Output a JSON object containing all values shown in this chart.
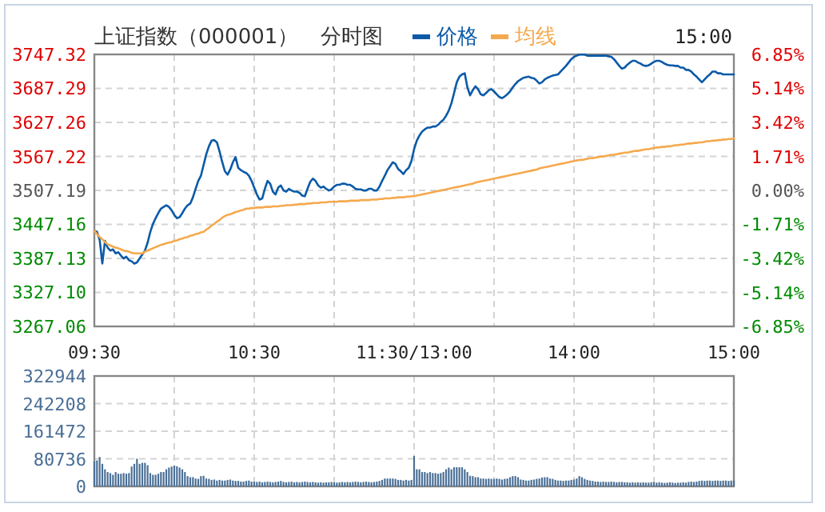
{
  "chart_data": [
    {
      "type": "line",
      "title": "上证指数（000001）",
      "subtitle": "分时图",
      "annotations": [
        "15:00"
      ],
      "legend": "top",
      "grid": true,
      "categories": [
        "09:30",
        null,
        null,
        null,
        null,
        null,
        null,
        null,
        null,
        null,
        null,
        null,
        null,
        null,
        null,
        null,
        null,
        null,
        null,
        null,
        null,
        null,
        null,
        null,
        null,
        null,
        null,
        null,
        null,
        null,
        null,
        null,
        null,
        null,
        null,
        null,
        null,
        null,
        null,
        null,
        null,
        null,
        null,
        null,
        null,
        null,
        null,
        null,
        null,
        null,
        null,
        null,
        null,
        null,
        null,
        null,
        null,
        null,
        null,
        null,
        "10:30",
        null,
        null,
        null,
        null,
        null,
        null,
        null,
        null,
        null,
        null,
        null,
        null,
        null,
        null,
        null,
        null,
        null,
        null,
        null,
        null,
        null,
        null,
        null,
        null,
        null,
        null,
        null,
        null,
        null,
        null,
        null,
        null,
        null,
        null,
        null,
        null,
        null,
        null,
        null,
        null,
        null,
        null,
        null,
        null,
        null,
        null,
        null,
        null,
        null,
        null,
        null,
        null,
        null,
        null,
        null,
        null,
        null,
        null,
        null,
        "11:30/13:00",
        null,
        null,
        null,
        null,
        null,
        null,
        null,
        null,
        null,
        null,
        null,
        null,
        null,
        null,
        null,
        null,
        null,
        null,
        null,
        null,
        null,
        null,
        null,
        null,
        null,
        null,
        null,
        null,
        null,
        null,
        null,
        null,
        null,
        null,
        null,
        null,
        null,
        null,
        null,
        null,
        null,
        null,
        null,
        null,
        null,
        null,
        null,
        null,
        null,
        null,
        null,
        null,
        null,
        null,
        null,
        null,
        null,
        null,
        null,
        "14:00",
        null,
        null,
        null,
        null,
        null,
        null,
        null,
        null,
        null,
        null,
        null,
        null,
        null,
        null,
        null,
        null,
        null,
        null,
        null,
        null,
        null,
        null,
        null,
        null,
        null,
        null,
        null,
        null,
        null,
        null,
        null,
        null,
        null,
        null,
        null,
        null,
        null,
        null,
        null,
        null,
        null,
        null,
        null,
        null,
        null,
        null,
        null,
        null,
        null,
        null,
        null,
        null,
        null,
        null,
        null,
        null,
        null,
        null,
        null,
        "15:00"
      ],
      "ylim": [
        3267.06,
        3747.32
      ],
      "yticks": [
        3267.06,
        {
          "value": 3327.1,
          "label": "3327.10"
        },
        3387.13,
        3447.16,
        3507.19,
        3567.22,
        3627.26,
        3687.29,
        3747.32
      ],
      "y2lim": [
        -6.85,
        6.85
      ],
      "y2ticks": [
        {
          "value": -6.85,
          "label": "-6.85%"
        },
        {
          "value": -5.14,
          "label": "-5.14%"
        },
        {
          "value": -3.42,
          "label": "-3.42%"
        },
        {
          "value": -1.71,
          "label": "-1.71%"
        },
        {
          "value": 0,
          "label": "0.00%"
        },
        {
          "value": 1.71,
          "label": "1.71%"
        },
        {
          "value": 3.42,
          "label": "3.42%"
        },
        {
          "value": 5.14,
          "label": "5.14%"
        },
        {
          "value": 6.85,
          "label": "6.85%"
        }
      ],
      "series": [
        {
          "name": "价格",
          "color": "#0b5aa8",
          "values": [
            3436,
            3434,
            3420,
            3378,
            3418,
            3406,
            3401,
            3403,
            3396,
            3398,
            3392,
            3387,
            3390,
            3384,
            3382,
            3378,
            3380,
            3387,
            3394,
            3401,
            3415,
            3434,
            3448,
            3458,
            3467,
            3475,
            3478,
            3481,
            3478,
            3472,
            3464,
            3458,
            3460,
            3467,
            3475,
            3481,
            3484,
            3495,
            3510,
            3524,
            3533,
            3552,
            3571,
            3585,
            3595,
            3596,
            3592,
            3576,
            3557,
            3541,
            3535,
            3544,
            3557,
            3566,
            3547,
            3543,
            3540,
            3538,
            3533,
            3524,
            3512,
            3500,
            3491,
            3493,
            3510,
            3524,
            3519,
            3505,
            3500,
            3512,
            3516,
            3507,
            3505,
            3510,
            3507,
            3505,
            3505,
            3503,
            3498,
            3497,
            3510,
            3522,
            3528,
            3524,
            3516,
            3512,
            3514,
            3510,
            3507,
            3509,
            3514,
            3517,
            3517,
            3519,
            3519,
            3517,
            3517,
            3514,
            3510,
            3509,
            3509,
            3507,
            3507,
            3510,
            3510,
            3507,
            3507,
            3514,
            3524,
            3533,
            3543,
            3550,
            3557,
            3554,
            3545,
            3541,
            3536,
            3543,
            3547,
            3559,
            3580,
            3595,
            3604,
            3611,
            3615,
            3618,
            3618,
            3620,
            3620,
            3623,
            3628,
            3632,
            3639,
            3648,
            3661,
            3679,
            3698,
            3708,
            3712,
            3714,
            3689,
            3675,
            3684,
            3691,
            3686,
            3677,
            3675,
            3679,
            3684,
            3686,
            3682,
            3677,
            3672,
            3670,
            3673,
            3677,
            3682,
            3689,
            3695,
            3700,
            3703,
            3706,
            3707,
            3708,
            3706,
            3705,
            3701,
            3696,
            3698,
            3703,
            3706,
            3708,
            3710,
            3711,
            3712,
            3717,
            3722,
            3727,
            3733,
            3739,
            3743,
            3745,
            3747,
            3747,
            3747,
            3745,
            3745,
            3745,
            3745,
            3745,
            3745,
            3745,
            3745,
            3744,
            3743,
            3739,
            3733,
            3727,
            3722,
            3724,
            3729,
            3733,
            3736,
            3736,
            3733,
            3731,
            3728,
            3727,
            3728,
            3731,
            3734,
            3736,
            3736,
            3734,
            3731,
            3729,
            3728,
            3728,
            3727,
            3727,
            3724,
            3724,
            3720,
            3720,
            3717,
            3712,
            3708,
            3703,
            3698,
            3703,
            3708,
            3712,
            3717,
            3717,
            3714,
            3714,
            3712,
            3712,
            3712,
            3712,
            3712
          ]
        },
        {
          "name": "均线",
          "color": "#f5a94e",
          "values": [
            3436,
            3430,
            3425,
            3421,
            3416,
            3412,
            3410,
            3408,
            3406,
            3405,
            3403,
            3401,
            3400,
            3399,
            3397,
            3396,
            3396,
            3396,
            3396,
            3399,
            3401,
            3403,
            3405,
            3407,
            3409,
            3411,
            3412,
            3414,
            3415,
            3416,
            3418,
            3419,
            3421,
            3422,
            3424,
            3425,
            3427,
            3428,
            3430,
            3431,
            3433,
            3434,
            3438,
            3441,
            3445,
            3448,
            3452,
            3455,
            3459,
            3462,
            3464,
            3465,
            3467,
            3469,
            3470,
            3472,
            3473,
            3475,
            3475,
            3476,
            3476,
            3477,
            3477,
            3477,
            3478,
            3478,
            3478,
            3479,
            3479,
            3479,
            3480,
            3480,
            3481,
            3481,
            3481,
            3482,
            3482,
            3483,
            3483,
            3483,
            3484,
            3484,
            3485,
            3485,
            3485,
            3486,
            3486,
            3486,
            3487,
            3487,
            3487,
            3487,
            3488,
            3488,
            3488,
            3488,
            3489,
            3489,
            3489,
            3489,
            3490,
            3490,
            3490,
            3490,
            3491,
            3491,
            3491,
            3492,
            3492,
            3493,
            3493,
            3493,
            3494,
            3494,
            3495,
            3495,
            3495,
            3496,
            3496,
            3497,
            3497,
            3498,
            3499,
            3500,
            3501,
            3502,
            3503,
            3504,
            3505,
            3506,
            3507,
            3508,
            3509,
            3510,
            3511,
            3512,
            3513,
            3514,
            3515,
            3516,
            3517,
            3518,
            3519,
            3521,
            3522,
            3523,
            3524,
            3525,
            3526,
            3527,
            3528,
            3529,
            3530,
            3531,
            3532,
            3533,
            3534,
            3535,
            3536,
            3537,
            3538,
            3539,
            3540,
            3541,
            3542,
            3543,
            3544,
            3546,
            3547,
            3548,
            3549,
            3550,
            3551,
            3552,
            3553,
            3554,
            3555,
            3556,
            3557,
            3558,
            3559,
            3560,
            3561,
            3561,
            3562,
            3563,
            3564,
            3564,
            3565,
            3566,
            3567,
            3567,
            3568,
            3569,
            3570,
            3570,
            3571,
            3572,
            3573,
            3574,
            3574,
            3575,
            3576,
            3577,
            3577,
            3578,
            3579,
            3580,
            3580,
            3581,
            3582,
            3583,
            3583,
            3584,
            3584,
            3585,
            3585,
            3586,
            3587,
            3587,
            3588,
            3588,
            3589,
            3590,
            3590,
            3591,
            3591,
            3592,
            3592,
            3593,
            3594,
            3594,
            3595,
            3595,
            3596,
            3596,
            3597,
            3597,
            3598,
            3598,
            3599
          ]
        }
      ]
    },
    {
      "type": "bar",
      "grid": true,
      "tick_labels": "y",
      "categories": [
        null,
        null,
        null,
        null,
        null,
        null,
        null,
        null,
        null,
        null,
        null,
        null,
        null,
        null,
        null,
        null,
        null,
        null,
        null,
        null,
        null,
        null,
        null,
        null,
        null,
        null,
        null,
        null,
        null,
        null,
        null,
        null,
        null,
        null,
        null,
        null,
        null,
        null,
        null,
        null,
        null,
        null,
        null,
        null,
        null,
        null,
        null,
        null,
        null,
        null,
        null,
        null,
        null,
        null,
        null,
        null,
        null,
        null,
        null,
        null,
        null,
        null,
        null,
        null,
        null,
        null,
        null,
        null,
        null,
        null,
        null,
        null,
        null,
        null,
        null,
        null,
        null,
        null,
        null,
        null,
        null,
        null,
        null,
        null,
        null,
        null,
        null,
        null,
        null,
        null,
        null,
        null,
        null,
        null,
        null,
        null,
        null,
        null,
        null,
        null,
        null,
        null,
        null,
        null,
        null,
        null,
        null,
        null,
        null,
        null,
        null,
        null,
        null,
        null,
        null,
        null,
        null,
        null,
        null,
        null,
        null,
        null,
        null,
        null,
        null,
        null,
        null,
        null,
        null,
        null,
        null,
        null,
        null,
        null,
        null,
        null,
        null,
        null,
        null,
        null,
        null,
        null,
        null,
        null,
        null,
        null,
        null,
        null,
        null,
        null,
        null,
        null,
        null,
        null,
        null,
        null,
        null,
        null,
        null,
        null,
        null,
        null,
        null,
        null,
        null,
        null,
        null,
        null,
        null,
        null,
        null,
        null,
        null,
        null,
        null,
        null,
        null,
        null,
        null,
        null,
        null,
        null,
        null,
        null,
        null,
        null,
        null,
        null,
        null,
        null,
        null,
        null,
        null,
        null,
        null,
        null,
        null,
        null,
        null,
        null,
        null,
        null,
        null,
        null,
        null,
        null,
        null,
        null,
        null,
        null,
        null,
        null,
        null,
        null,
        null,
        null,
        null,
        null,
        null,
        null,
        null,
        null,
        null,
        null,
        null,
        null,
        null,
        null,
        null,
        null,
        null,
        null,
        null,
        null,
        null,
        null,
        null,
        null,
        null,
        null,
        null
      ],
      "ylim": [
        0,
        322944
      ],
      "yticks": [
        0,
        80736,
        161472,
        242208,
        322944
      ],
      "series": [
        {
          "color": "#4a6f96",
          "values": [
            73000,
            76000,
            86000,
            66000,
            50000,
            42000,
            39000,
            34000,
            42000,
            37000,
            37000,
            39000,
            37000,
            39000,
            58000,
            66000,
            81000,
            66000,
            69000,
            69000,
            62000,
            39000,
            34000,
            34000,
            37000,
            42000,
            42000,
            50000,
            55000,
            58000,
            61000,
            59000,
            55000,
            50000,
            42000,
            30000,
            27000,
            27000,
            23000,
            22000,
            30000,
            31000,
            23000,
            22000,
            19000,
            20000,
            17000,
            19000,
            17000,
            17000,
            19000,
            20000,
            17000,
            16000,
            16000,
            14000,
            14000,
            16000,
            17000,
            14000,
            14000,
            13000,
            14000,
            12000,
            13000,
            14000,
            13000,
            12000,
            13000,
            14000,
            16000,
            13000,
            12000,
            13000,
            14000,
            12000,
            13000,
            12000,
            13000,
            14000,
            13000,
            12000,
            13000,
            12000,
            11000,
            12000,
            11000,
            12000,
            12000,
            13000,
            12000,
            11000,
            12000,
            13000,
            12000,
            13000,
            12000,
            13000,
            14000,
            13000,
            12000,
            13000,
            14000,
            13000,
            12000,
            13000,
            14000,
            16000,
            19000,
            23000,
            23000,
            23000,
            23000,
            22000,
            19000,
            19000,
            17000,
            19000,
            17000,
            19000,
            89000,
            50000,
            50000,
            42000,
            42000,
            39000,
            42000,
            39000,
            39000,
            37000,
            39000,
            42000,
            50000,
            55000,
            50000,
            56000,
            56000,
            56000,
            56000,
            50000,
            42000,
            31000,
            30000,
            27000,
            27000,
            23000,
            23000,
            22000,
            23000,
            22000,
            22000,
            23000,
            22000,
            20000,
            22000,
            23000,
            27000,
            30000,
            30000,
            27000,
            20000,
            19000,
            17000,
            17000,
            19000,
            20000,
            22000,
            23000,
            26000,
            27000,
            27000,
            23000,
            22000,
            19000,
            17000,
            17000,
            16000,
            17000,
            17000,
            19000,
            20000,
            23000,
            30000,
            27000,
            22000,
            19000,
            17000,
            16000,
            14000,
            14000,
            13000,
            14000,
            13000,
            13000,
            14000,
            13000,
            12000,
            13000,
            13000,
            12000,
            12000,
            11000,
            12000,
            11000,
            12000,
            11000,
            12000,
            11000,
            11000,
            12000,
            13000,
            11000,
            12000,
            11000,
            10000,
            11000,
            12000,
            11000,
            10000,
            11000,
            11000,
            12000,
            11000,
            13000,
            14000,
            13000,
            14000,
            16000,
            17000,
            16000,
            17000,
            17000,
            16000,
            17000,
            17000,
            16000,
            17000,
            17000,
            16000,
            17000,
            17000
          ]
        }
      ]
    }
  ]
}
